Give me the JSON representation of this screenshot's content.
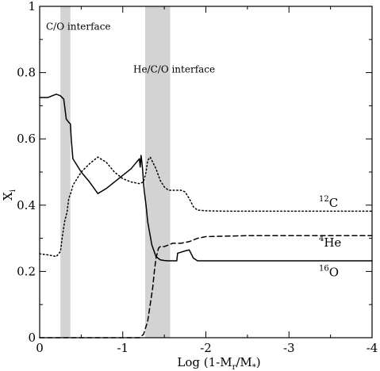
{
  "chart_data": {
    "type": "line",
    "title": "",
    "xlabel": {
      "main": "Log (1-M",
      "sub_r": "r",
      "mid": "/M",
      "sub_star": "*",
      "end": ")"
    },
    "ylabel": {
      "main": "X",
      "sub": "i"
    },
    "xlim": [
      0,
      -4
    ],
    "ylim": [
      0,
      1
    ],
    "xticks": [
      0,
      -1,
      -2,
      -3,
      -4
    ],
    "yticks": [
      0,
      0.2,
      0.4,
      0.6,
      0.8,
      1
    ],
    "xtick_labels": [
      "0",
      "-1",
      "-2",
      "-3",
      "-4"
    ],
    "ytick_labels": [
      "0",
      "0.2",
      "0.4",
      "0.6",
      "0.8",
      "1"
    ],
    "bands": [
      {
        "x_from": -0.25,
        "x_to": -0.37,
        "color": "#d3d3d3"
      },
      {
        "x_from": -1.27,
        "x_to": -1.57,
        "color": "#d3d3d3"
      }
    ],
    "annotations": [
      {
        "text": "C/O interface",
        "x": -0.0,
        "y": 0.93
      },
      {
        "text": "He/C/O interface",
        "x": -1.05,
        "y": 0.8
      }
    ],
    "series": [
      {
        "name": "16O",
        "iso_mass": "16",
        "iso_sym": "O",
        "style": "solid",
        "label_x": -3.36,
        "label_y": 0.185,
        "x": [
          0,
          -0.1,
          -0.2,
          -0.25,
          -0.27,
          -0.29,
          -0.3,
          -0.32,
          -0.35,
          -0.37,
          -0.38,
          -0.4,
          -0.5,
          -0.6,
          -0.7,
          -0.8,
          -0.9,
          -1.0,
          -1.1,
          -1.15,
          -1.2,
          -1.21,
          -1.22,
          -1.23,
          -1.24,
          -1.25,
          -1.26,
          -1.28,
          -1.3,
          -1.35,
          -1.4,
          -1.45,
          -1.5,
          -1.55,
          -1.6,
          -1.65,
          -1.66,
          -1.7,
          -1.75,
          -1.8,
          -1.85,
          -1.9,
          -2.0,
          -2.2,
          -2.5,
          -3.0,
          -3.5,
          -4.0
        ],
        "y": [
          0.725,
          0.725,
          0.735,
          0.73,
          0.725,
          0.72,
          0.7,
          0.66,
          0.65,
          0.645,
          0.6,
          0.54,
          0.5,
          0.47,
          0.435,
          0.45,
          0.47,
          0.49,
          0.51,
          0.525,
          0.54,
          0.515,
          0.55,
          0.53,
          0.505,
          0.465,
          0.44,
          0.4,
          0.35,
          0.28,
          0.245,
          0.235,
          0.233,
          0.232,
          0.232,
          0.232,
          0.255,
          0.258,
          0.262,
          0.265,
          0.24,
          0.232,
          0.232,
          0.232,
          0.232,
          0.232,
          0.232,
          0.232
        ]
      },
      {
        "name": "12C",
        "iso_mass": "12",
        "iso_sym": "C",
        "style": "dotted",
        "label_x": -3.36,
        "label_y": 0.395,
        "x": [
          0,
          -0.1,
          -0.2,
          -0.25,
          -0.27,
          -0.3,
          -0.33,
          -0.35,
          -0.38,
          -0.4,
          -0.45,
          -0.5,
          -0.6,
          -0.7,
          -0.8,
          -0.9,
          -1.0,
          -1.1,
          -1.2,
          -1.25,
          -1.28,
          -1.3,
          -1.33,
          -1.36,
          -1.4,
          -1.45,
          -1.5,
          -1.55,
          -1.6,
          -1.7,
          -1.75,
          -1.8,
          -1.85,
          -1.9,
          -2.0,
          -2.2,
          -2.5,
          -3.0,
          -3.5,
          -4.0
        ],
        "y": [
          0.253,
          0.25,
          0.245,
          0.26,
          0.3,
          0.35,
          0.38,
          0.42,
          0.44,
          0.46,
          0.48,
          0.5,
          0.525,
          0.545,
          0.53,
          0.5,
          0.48,
          0.47,
          0.465,
          0.47,
          0.5,
          0.535,
          0.545,
          0.53,
          0.51,
          0.475,
          0.455,
          0.445,
          0.445,
          0.445,
          0.44,
          0.42,
          0.395,
          0.385,
          0.383,
          0.382,
          0.382,
          0.382,
          0.382,
          0.382
        ]
      },
      {
        "name": "4He",
        "iso_mass": "4",
        "iso_sym": "He",
        "style": "dashed",
        "label_x": -3.36,
        "label_y": 0.275,
        "x": [
          0,
          -0.5,
          -1.0,
          -1.2,
          -1.25,
          -1.3,
          -1.33,
          -1.36,
          -1.38,
          -1.4,
          -1.43,
          -1.45,
          -1.5,
          -1.55,
          -1.6,
          -1.7,
          -1.8,
          -1.85,
          -1.9,
          -2.0,
          -2.5,
          -3.0,
          -3.5,
          -4.0
        ],
        "y": [
          0,
          0,
          0,
          0,
          0.01,
          0.05,
          0.1,
          0.15,
          0.2,
          0.24,
          0.27,
          0.275,
          0.275,
          0.28,
          0.285,
          0.285,
          0.29,
          0.295,
          0.3,
          0.305,
          0.308,
          0.308,
          0.308,
          0.308
        ]
      }
    ]
  }
}
